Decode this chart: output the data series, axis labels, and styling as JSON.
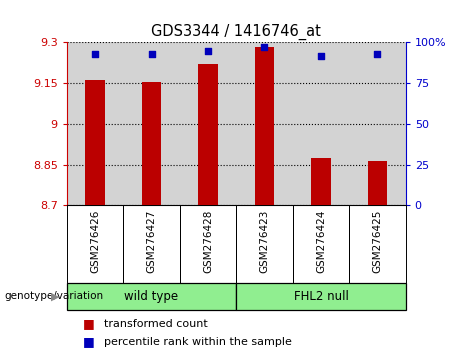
{
  "title": "GDS3344 / 1416746_at",
  "samples": [
    "GSM276426",
    "GSM276427",
    "GSM276428",
    "GSM276423",
    "GSM276424",
    "GSM276425"
  ],
  "bar_values": [
    9.16,
    9.155,
    9.22,
    9.285,
    8.875,
    8.863
  ],
  "percentile_values": [
    93,
    93,
    95,
    97,
    92,
    93
  ],
  "ymin": 8.7,
  "ymax": 9.3,
  "yticks": [
    8.7,
    8.85,
    9.0,
    9.15,
    9.3
  ],
  "ytick_labels": [
    "8.7",
    "8.85",
    "9",
    "9.15",
    "9.3"
  ],
  "y2min": 0,
  "y2max": 100,
  "y2ticks": [
    0,
    25,
    50,
    75,
    100
  ],
  "y2tick_labels": [
    "0",
    "25",
    "50",
    "75",
    "100%"
  ],
  "bar_color": "#bb0000",
  "dot_color": "#0000bb",
  "grid_color": "#000000",
  "axis_color_left": "#cc0000",
  "axis_color_right": "#0000cc",
  "bg_plot": "#d3d3d3",
  "bg_label": "#d3d3d3",
  "bg_wt": "#90ee90",
  "bg_fhl": "#90ee90",
  "legend_bar_label": "transformed count",
  "legend_dot_label": "percentile rank within the sample",
  "genotype_label": "genotype/variation"
}
